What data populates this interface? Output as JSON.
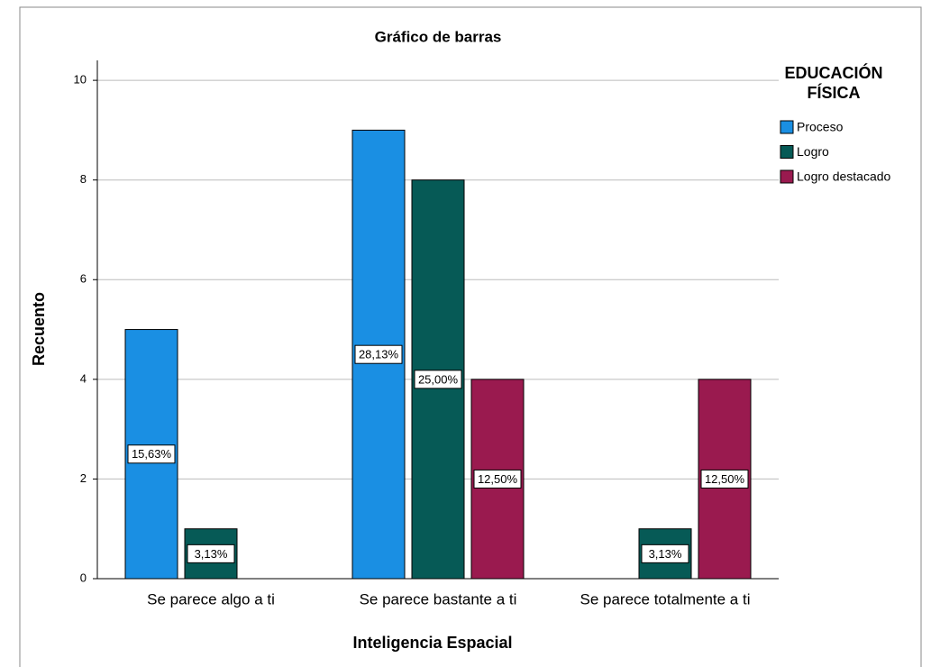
{
  "chart_data": {
    "type": "bar",
    "title": "Gráfico de barras",
    "x_label": "Inteligencia Espacial",
    "y_label": "Recuento",
    "legend_title": [
      "EDUCACIÓN",
      "FÍSICA"
    ],
    "categories": [
      "Se parece algo a ti",
      "Se parece bastante a ti",
      "Se parece totalmente a ti"
    ],
    "series": [
      {
        "name": "Proceso",
        "color": "#1a8fe3",
        "values": [
          5,
          9,
          null
        ],
        "percent_labels": [
          "15,63%",
          "28,13%",
          null
        ]
      },
      {
        "name": "Logro",
        "color": "#065a56",
        "values": [
          1,
          8,
          1
        ],
        "percent_labels": [
          "3,13%",
          "25,00%",
          "3,13%"
        ]
      },
      {
        "name": "Logro destacado",
        "color": "#9a1a4f",
        "values": [
          null,
          4,
          4
        ],
        "percent_labels": [
          null,
          "12,50%",
          "12,50%"
        ]
      }
    ],
    "ylim": [
      0,
      10.4
    ],
    "yticks": [
      0,
      2,
      4,
      6,
      8,
      10
    ],
    "grid": true,
    "legend": "right"
  }
}
